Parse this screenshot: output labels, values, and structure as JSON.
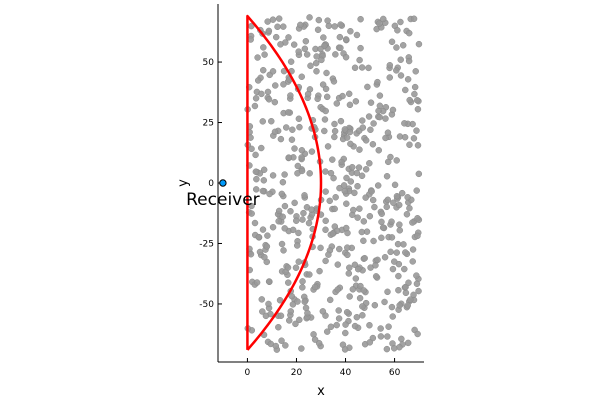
{
  "chart_data": {
    "type": "scatter",
    "title": "",
    "xlabel": "x",
    "ylabel": "y",
    "xlim": [
      -12,
      72
    ],
    "ylim": [
      -74,
      74
    ],
    "xticks": [
      0,
      20,
      40,
      60
    ],
    "yticks": [
      -50,
      -25,
      0,
      25,
      50
    ],
    "xtick_labels": [
      "0",
      "20",
      "40",
      "60"
    ],
    "ytick_labels": [
      "-50",
      "-25",
      "0",
      "25",
      "50"
    ],
    "grid": false,
    "aspect": "equal",
    "receiver": {
      "name": "Receiver",
      "x": -10,
      "y": 0,
      "label": "Receiver",
      "color": "#009AFA"
    },
    "boundary": {
      "name": "boundary",
      "color": "#FF0000",
      "x_vertical": 0,
      "y_top": 69,
      "y_bottom": -69,
      "apex": [
        30,
        0
      ]
    },
    "scatter_style": {
      "color": "#999999",
      "edge_color": "#888888",
      "x_range": [
        0,
        70
      ],
      "y_range": [
        -69,
        69
      ],
      "count": 600
    }
  }
}
